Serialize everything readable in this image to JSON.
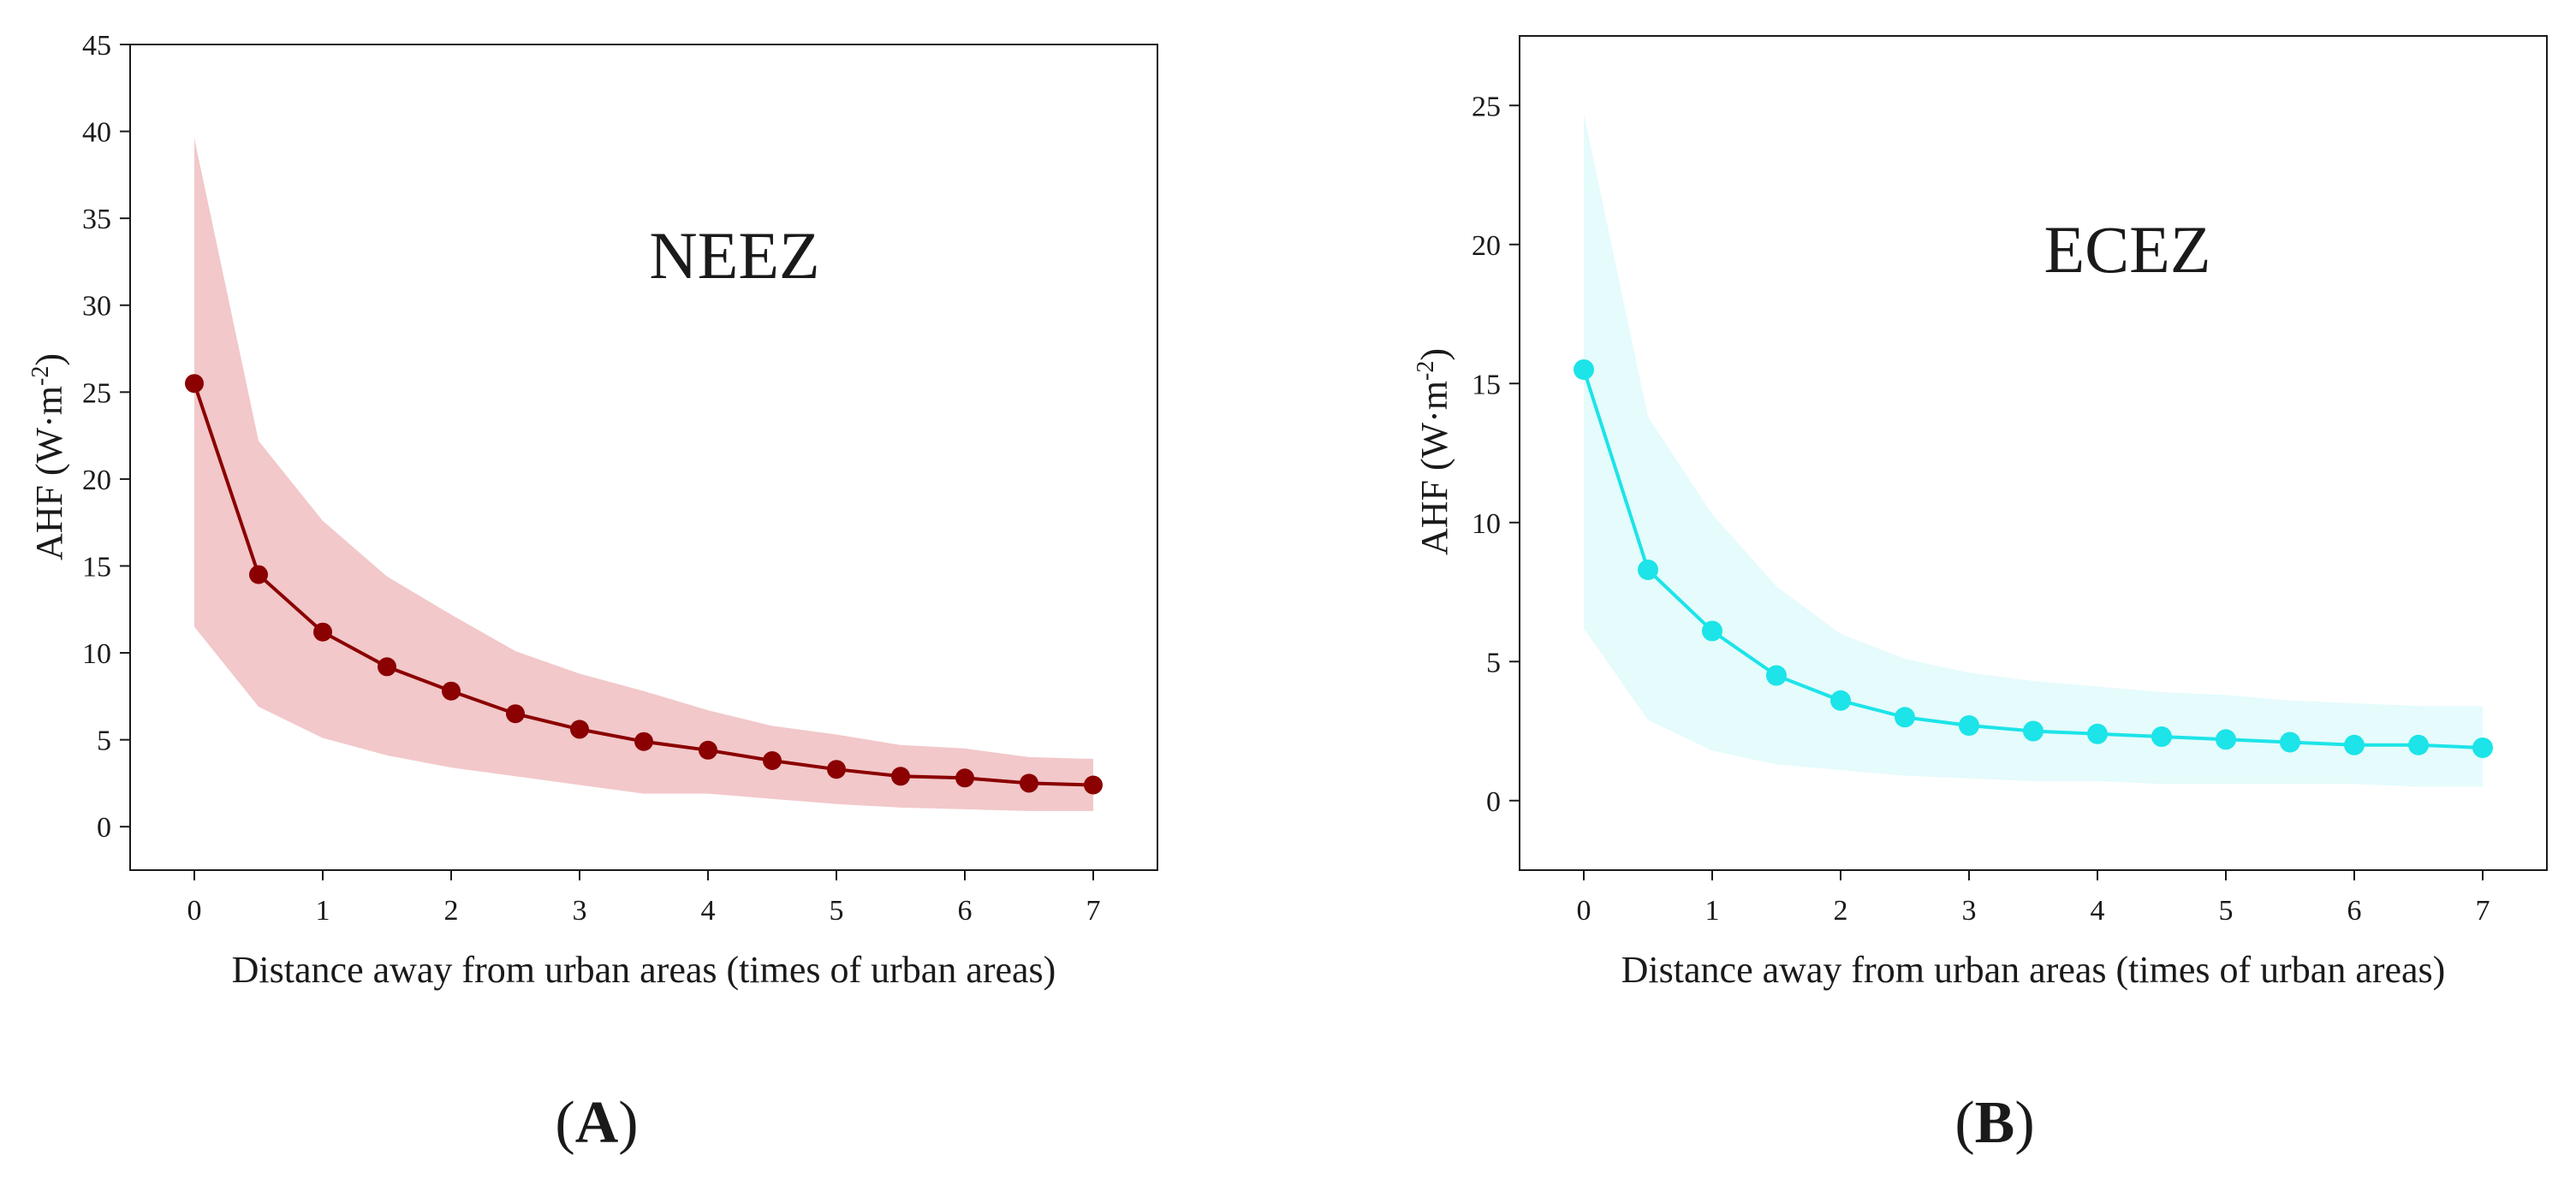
{
  "chart_data": [
    {
      "type": "line",
      "panel_label": "A",
      "title": "NEEZ",
      "xlabel": "Distance away from urban areas (times of urban areas)",
      "ylabel_prefix": "AHF (W·m",
      "ylabel_exponent": "-2",
      "ylabel_suffix": ")",
      "xlim": [
        -0.5,
        7.5
      ],
      "ylim": [
        -2.5,
        45
      ],
      "xticks": [
        0,
        1,
        2,
        3,
        4,
        5,
        6,
        7
      ],
      "yticks": [
        0,
        5,
        10,
        15,
        20,
        25,
        30,
        35,
        40,
        45
      ],
      "grid": false,
      "legend": "none",
      "line_color": "#8b0000",
      "band_color": "#e9a3a6",
      "series": [
        {
          "name": "Mean AHF",
          "x": [
            0,
            0.5,
            1,
            1.5,
            2,
            2.5,
            3,
            3.5,
            4,
            4.5,
            5,
            5.5,
            6,
            6.5,
            7
          ],
          "values": [
            25.5,
            14.5,
            11.2,
            9.2,
            7.8,
            6.5,
            5.6,
            4.9,
            4.4,
            3.8,
            3.3,
            2.9,
            2.8,
            2.5,
            2.4
          ]
        }
      ],
      "band": {
        "name": "Range",
        "upper": [
          39.6,
          22.2,
          17.6,
          14.4,
          12.2,
          10.1,
          8.8,
          7.8,
          6.7,
          5.8,
          5.3,
          4.7,
          4.5,
          4.0,
          3.9
        ],
        "lower": [
          11.5,
          6.9,
          5.1,
          4.1,
          3.4,
          2.9,
          2.4,
          1.9,
          1.9,
          1.6,
          1.3,
          1.1,
          1.0,
          0.9,
          0.9
        ]
      }
    },
    {
      "type": "line",
      "panel_label": "B",
      "title": "ECEZ",
      "xlabel": "Distance away from urban areas (times of urban areas)",
      "ylabel_prefix": "AHF (W·m",
      "ylabel_exponent": "-2",
      "ylabel_suffix": ")",
      "xlim": [
        -0.5,
        7.5
      ],
      "ylim": [
        -2.5,
        27.5
      ],
      "xticks": [
        0,
        1,
        2,
        3,
        4,
        5,
        6,
        7
      ],
      "yticks": [
        0,
        5,
        10,
        15,
        20,
        25
      ],
      "grid": false,
      "legend": "none",
      "line_color": "#1ce4e8",
      "band_color": "#d3f8fa",
      "series": [
        {
          "name": "Mean AHF",
          "x": [
            0,
            0.5,
            1,
            1.5,
            2,
            2.5,
            3,
            3.5,
            4,
            4.5,
            5,
            5.5,
            6,
            6.5,
            7
          ],
          "values": [
            15.5,
            8.3,
            6.1,
            4.5,
            3.6,
            3.0,
            2.7,
            2.5,
            2.4,
            2.3,
            2.2,
            2.1,
            2.0,
            2.0,
            1.9
          ]
        }
      ],
      "band": {
        "name": "Range",
        "upper": [
          24.7,
          13.8,
          10.3,
          7.7,
          6.0,
          5.1,
          4.6,
          4.3,
          4.1,
          3.9,
          3.8,
          3.6,
          3.5,
          3.4,
          3.4
        ],
        "lower": [
          6.2,
          2.9,
          1.8,
          1.3,
          1.1,
          0.9,
          0.8,
          0.7,
          0.7,
          0.6,
          0.6,
          0.6,
          0.6,
          0.5,
          0.5
        ]
      }
    }
  ]
}
